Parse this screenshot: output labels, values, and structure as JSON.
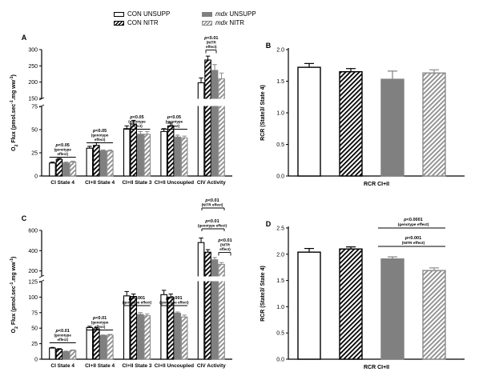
{
  "legend": [
    {
      "key": "con_unsupp",
      "label": "CON UNSUPP",
      "italic_part": "",
      "color": "#000000",
      "fill": "white"
    },
    {
      "key": "con_nitr",
      "label": "CON NITR",
      "italic_part": "",
      "color": "#000000",
      "fill": "hatch-black"
    },
    {
      "key": "mdx_unsupp",
      "label": " UNSUPP",
      "italic_part": "mdx",
      "color": "#808080",
      "fill": "grey"
    },
    {
      "key": "mdx_nitr",
      "label": " NITR",
      "italic_part": "mdx",
      "color": "#8c8c8c",
      "fill": "hatch-grey"
    }
  ],
  "chart_data": [
    {
      "panel": "A",
      "type": "bar",
      "ylabel": "O2 Flux (pmol.sec-1.mg ww-1)",
      "broken_axis": {
        "lower_range": [
          0,
          75
        ],
        "lower_ticks": [
          0,
          25,
          50,
          75
        ],
        "upper_range": [
          150,
          300
        ],
        "upper_ticks": [
          150,
          200,
          250,
          300
        ]
      },
      "categories": [
        "CI State 4",
        "CI+II State 4",
        "CI+II State 3",
        "CI+II Uncoupled",
        "CIV Activity"
      ],
      "series": [
        {
          "name": "CON UNSUPP",
          "values": [
            14,
            30,
            51,
            48,
            198
          ],
          "errors": [
            1,
            2,
            3,
            3,
            15
          ]
        },
        {
          "name": "CON NITR",
          "values": [
            18,
            33,
            56,
            54,
            268
          ],
          "errors": [
            1,
            3,
            4,
            3,
            12
          ]
        },
        {
          "name": "mdx UNSUPP",
          "values": [
            14,
            27,
            45,
            42,
            236
          ],
          "errors": [
            1,
            1,
            3,
            2,
            18
          ]
        },
        {
          "name": "mdx NITR",
          "values": [
            15,
            27,
            45,
            41,
            210
          ],
          "errors": [
            1,
            1,
            3,
            2,
            18
          ]
        }
      ],
      "annotations": [
        {
          "text": "p<0.05",
          "sub": [
            "(genotype",
            "effect)"
          ],
          "category": 0
        },
        {
          "text": "p<0.05",
          "sub": [
            "(genotype",
            "effect)"
          ],
          "category": 1
        },
        {
          "text": "p<0.05",
          "sub": [
            "(genotype",
            "effect)"
          ],
          "category": 2
        },
        {
          "text": "p<0.05",
          "sub": [
            "(genotype",
            "effect)"
          ],
          "category": 3
        },
        {
          "text": "p<0.01",
          "sub": [
            "(NITR",
            "effect)"
          ],
          "category": 4
        }
      ]
    },
    {
      "panel": "B",
      "type": "bar",
      "ylabel": "RCR (State3/ State 4)",
      "xlabel": "RCR CI+II",
      "ylim": [
        0,
        2.0
      ],
      "yticks": [
        "0.0",
        "0.5",
        "1.0",
        "1.5",
        "2.0"
      ],
      "series": [
        {
          "name": "CON UNSUPP",
          "values": [
            1.72
          ],
          "errors": [
            0.06
          ]
        },
        {
          "name": "CON NITR",
          "values": [
            1.65
          ],
          "errors": [
            0.05
          ]
        },
        {
          "name": "mdx UNSUPP",
          "values": [
            1.53
          ],
          "errors": [
            0.13
          ]
        },
        {
          "name": "mdx NITR",
          "values": [
            1.63
          ],
          "errors": [
            0.05
          ]
        }
      ]
    },
    {
      "panel": "C",
      "type": "bar",
      "ylabel": "O2 Flux (pmol.sec-1.mg ww-1)",
      "broken_axis": {
        "lower_range": [
          0,
          125
        ],
        "lower_ticks": [
          0,
          25,
          50,
          75,
          100,
          125
        ],
        "upper_range": [
          150,
          600
        ],
        "upper_ticks": [
          200,
          400,
          600
        ]
      },
      "categories": [
        "CI State 4",
        "CI+II State 4",
        "CI+II State 3",
        "CI+II Uncoupled",
        "CIV Activity"
      ],
      "series": [
        {
          "name": "CON UNSUPP",
          "values": [
            18,
            51,
            102,
            104,
            480
          ],
          "errors": [
            1,
            2,
            7,
            7,
            45
          ]
        },
        {
          "name": "CON NITR",
          "values": [
            16,
            49,
            101,
            100,
            385
          ],
          "errors": [
            1,
            2,
            4,
            5,
            25
          ]
        },
        {
          "name": "mdx UNSUPP",
          "values": [
            12,
            38,
            72,
            74,
            310
          ],
          "errors": [
            1,
            1,
            3,
            2,
            22
          ]
        },
        {
          "name": "mdx NITR",
          "values": [
            14,
            39,
            70,
            68,
            265
          ],
          "errors": [
            1,
            1,
            3,
            3,
            18
          ]
        }
      ],
      "annotations": [
        {
          "text": "p<0.01",
          "sub": [
            "(genotype",
            "effect)"
          ],
          "category": 0
        },
        {
          "text": "p<0.01",
          "sub": [
            "(genotype",
            "effect)"
          ],
          "category": 1
        },
        {
          "text": "p<0.001",
          "sub": [
            "(genotype effect)"
          ],
          "category": 2
        },
        {
          "text": "p<0.001",
          "sub": [
            "(genotype effect)"
          ],
          "category": 3
        },
        {
          "text": "p<0.01",
          "sub": [
            "(genotype effect)"
          ],
          "category": 4,
          "level": 1
        },
        {
          "text": "p<0.01",
          "sub": [
            "(NITR effect)"
          ],
          "category": 4,
          "level": 2
        },
        {
          "text": "p<0.01",
          "sub": [
            "(NITR",
            "effect)"
          ],
          "category": 4,
          "level": 3
        }
      ]
    },
    {
      "panel": "D",
      "type": "bar",
      "ylabel": "RCR (State3/ State 4)",
      "xlabel": "RCR CI+II",
      "ylim": [
        0,
        2.5
      ],
      "yticks": [
        "0.0",
        "0.5",
        "1.0",
        "1.5",
        "2.0",
        "2.5"
      ],
      "series": [
        {
          "name": "CON UNSUPP",
          "values": [
            2.04
          ],
          "errors": [
            0.07
          ]
        },
        {
          "name": "CON NITR",
          "values": [
            2.1
          ],
          "errors": [
            0.04
          ]
        },
        {
          "name": "mdx UNSUPP",
          "values": [
            1.91
          ],
          "errors": [
            0.04
          ]
        },
        {
          "name": "mdx NITR",
          "values": [
            1.69
          ],
          "errors": [
            0.05
          ]
        }
      ],
      "annotations": [
        {
          "text": "p<0.0001",
          "sub": [
            "(genotype effect)"
          ]
        },
        {
          "text": "p<0.001",
          "sub": [
            "(NITR effect)"
          ]
        }
      ]
    }
  ]
}
